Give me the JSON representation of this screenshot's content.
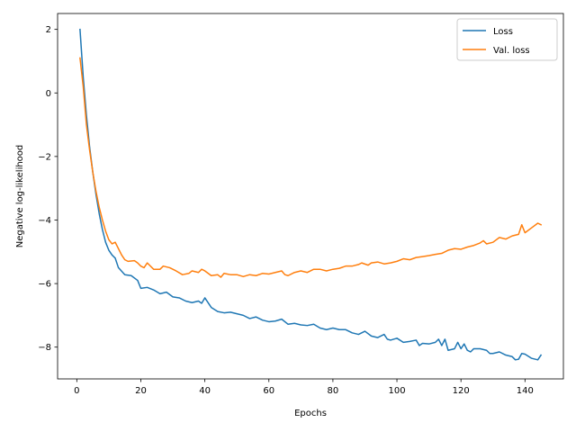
{
  "chart_data": {
    "type": "line",
    "xlabel": "Epochs",
    "ylabel": "Negative log-likelihood",
    "xlim": [
      -6,
      152
    ],
    "ylim": [
      -9.0,
      2.5
    ],
    "xticks": [
      0,
      20,
      40,
      60,
      80,
      100,
      120,
      140
    ],
    "yticks": [
      -8,
      -6,
      -4,
      -2,
      0,
      2
    ],
    "grid": false,
    "legend": "top-right",
    "series": [
      {
        "name": "Loss",
        "color": "#1f77b4",
        "points": [
          [
            1,
            2.0
          ],
          [
            2,
            0.5
          ],
          [
            3,
            -0.7
          ],
          [
            4,
            -1.7
          ],
          [
            5,
            -2.5
          ],
          [
            6,
            -3.2
          ],
          [
            7,
            -3.8
          ],
          [
            8,
            -4.3
          ],
          [
            9,
            -4.7
          ],
          [
            10,
            -4.95
          ],
          [
            11,
            -5.1
          ],
          [
            12,
            -5.2
          ],
          [
            13,
            -5.5
          ],
          [
            15,
            -5.72
          ],
          [
            17,
            -5.75
          ],
          [
            19,
            -5.9
          ],
          [
            20,
            -6.15
          ],
          [
            22,
            -6.12
          ],
          [
            24,
            -6.2
          ],
          [
            26,
            -6.32
          ],
          [
            28,
            -6.27
          ],
          [
            30,
            -6.42
          ],
          [
            32,
            -6.45
          ],
          [
            34,
            -6.55
          ],
          [
            36,
            -6.6
          ],
          [
            38,
            -6.55
          ],
          [
            39,
            -6.62
          ],
          [
            40,
            -6.45
          ],
          [
            42,
            -6.75
          ],
          [
            44,
            -6.88
          ],
          [
            46,
            -6.92
          ],
          [
            48,
            -6.9
          ],
          [
            50,
            -6.95
          ],
          [
            52,
            -7.0
          ],
          [
            54,
            -7.1
          ],
          [
            56,
            -7.05
          ],
          [
            58,
            -7.15
          ],
          [
            60,
            -7.2
          ],
          [
            62,
            -7.18
          ],
          [
            64,
            -7.12
          ],
          [
            66,
            -7.28
          ],
          [
            68,
            -7.25
          ],
          [
            70,
            -7.3
          ],
          [
            72,
            -7.32
          ],
          [
            74,
            -7.28
          ],
          [
            76,
            -7.4
          ],
          [
            78,
            -7.45
          ],
          [
            80,
            -7.4
          ],
          [
            82,
            -7.45
          ],
          [
            84,
            -7.45
          ],
          [
            86,
            -7.55
          ],
          [
            88,
            -7.6
          ],
          [
            90,
            -7.5
          ],
          [
            92,
            -7.65
          ],
          [
            94,
            -7.7
          ],
          [
            96,
            -7.6
          ],
          [
            97,
            -7.75
          ],
          [
            98,
            -7.78
          ],
          [
            100,
            -7.72
          ],
          [
            102,
            -7.85
          ],
          [
            104,
            -7.82
          ],
          [
            106,
            -7.78
          ],
          [
            107,
            -7.95
          ],
          [
            108,
            -7.88
          ],
          [
            110,
            -7.9
          ],
          [
            112,
            -7.85
          ],
          [
            113,
            -7.75
          ],
          [
            114,
            -7.95
          ],
          [
            115,
            -7.75
          ],
          [
            116,
            -8.1
          ],
          [
            118,
            -8.05
          ],
          [
            119,
            -7.85
          ],
          [
            120,
            -8.05
          ],
          [
            121,
            -7.9
          ],
          [
            122,
            -8.1
          ],
          [
            123,
            -8.15
          ],
          [
            124,
            -8.05
          ],
          [
            126,
            -8.05
          ],
          [
            128,
            -8.1
          ],
          [
            129,
            -8.2
          ],
          [
            130,
            -8.2
          ],
          [
            132,
            -8.15
          ],
          [
            134,
            -8.25
          ],
          [
            136,
            -8.3
          ],
          [
            137,
            -8.4
          ],
          [
            138,
            -8.38
          ],
          [
            139,
            -8.2
          ],
          [
            140,
            -8.22
          ],
          [
            142,
            -8.35
          ],
          [
            144,
            -8.4
          ],
          [
            145,
            -8.25
          ]
        ]
      },
      {
        "name": "Val. loss",
        "color": "#ff7f0e",
        "points": [
          [
            1,
            1.1
          ],
          [
            2,
            0.2
          ],
          [
            3,
            -1.0
          ],
          [
            4,
            -1.8
          ],
          [
            5,
            -2.5
          ],
          [
            6,
            -3.1
          ],
          [
            7,
            -3.6
          ],
          [
            8,
            -4.0
          ],
          [
            9,
            -4.35
          ],
          [
            10,
            -4.62
          ],
          [
            11,
            -4.75
          ],
          [
            12,
            -4.7
          ],
          [
            13,
            -4.9
          ],
          [
            14,
            -5.1
          ],
          [
            15,
            -5.25
          ],
          [
            16,
            -5.3
          ],
          [
            18,
            -5.28
          ],
          [
            19,
            -5.35
          ],
          [
            20,
            -5.45
          ],
          [
            21,
            -5.5
          ],
          [
            22,
            -5.35
          ],
          [
            24,
            -5.55
          ],
          [
            26,
            -5.55
          ],
          [
            27,
            -5.45
          ],
          [
            29,
            -5.5
          ],
          [
            31,
            -5.6
          ],
          [
            33,
            -5.72
          ],
          [
            35,
            -5.68
          ],
          [
            36,
            -5.6
          ],
          [
            38,
            -5.65
          ],
          [
            39,
            -5.55
          ],
          [
            40,
            -5.6
          ],
          [
            42,
            -5.75
          ],
          [
            44,
            -5.72
          ],
          [
            45,
            -5.8
          ],
          [
            46,
            -5.68
          ],
          [
            48,
            -5.72
          ],
          [
            50,
            -5.72
          ],
          [
            52,
            -5.78
          ],
          [
            54,
            -5.72
          ],
          [
            56,
            -5.75
          ],
          [
            58,
            -5.68
          ],
          [
            60,
            -5.7
          ],
          [
            62,
            -5.65
          ],
          [
            64,
            -5.6
          ],
          [
            65,
            -5.72
          ],
          [
            66,
            -5.75
          ],
          [
            68,
            -5.65
          ],
          [
            70,
            -5.6
          ],
          [
            72,
            -5.65
          ],
          [
            74,
            -5.55
          ],
          [
            76,
            -5.55
          ],
          [
            78,
            -5.6
          ],
          [
            80,
            -5.55
          ],
          [
            82,
            -5.52
          ],
          [
            84,
            -5.45
          ],
          [
            86,
            -5.45
          ],
          [
            88,
            -5.4
          ],
          [
            89,
            -5.35
          ],
          [
            91,
            -5.42
          ],
          [
            92,
            -5.35
          ],
          [
            94,
            -5.32
          ],
          [
            96,
            -5.38
          ],
          [
            98,
            -5.35
          ],
          [
            100,
            -5.3
          ],
          [
            102,
            -5.22
          ],
          [
            104,
            -5.25
          ],
          [
            106,
            -5.18
          ],
          [
            108,
            -5.15
          ],
          [
            110,
            -5.12
          ],
          [
            112,
            -5.08
          ],
          [
            114,
            -5.05
          ],
          [
            116,
            -4.95
          ],
          [
            118,
            -4.9
          ],
          [
            120,
            -4.92
          ],
          [
            122,
            -4.85
          ],
          [
            124,
            -4.8
          ],
          [
            126,
            -4.72
          ],
          [
            127,
            -4.65
          ],
          [
            128,
            -4.75
          ],
          [
            130,
            -4.7
          ],
          [
            132,
            -4.55
          ],
          [
            134,
            -4.6
          ],
          [
            136,
            -4.5
          ],
          [
            138,
            -4.45
          ],
          [
            139,
            -4.15
          ],
          [
            140,
            -4.4
          ],
          [
            142,
            -4.25
          ],
          [
            144,
            -4.1
          ],
          [
            145,
            -4.15
          ]
        ]
      }
    ]
  }
}
